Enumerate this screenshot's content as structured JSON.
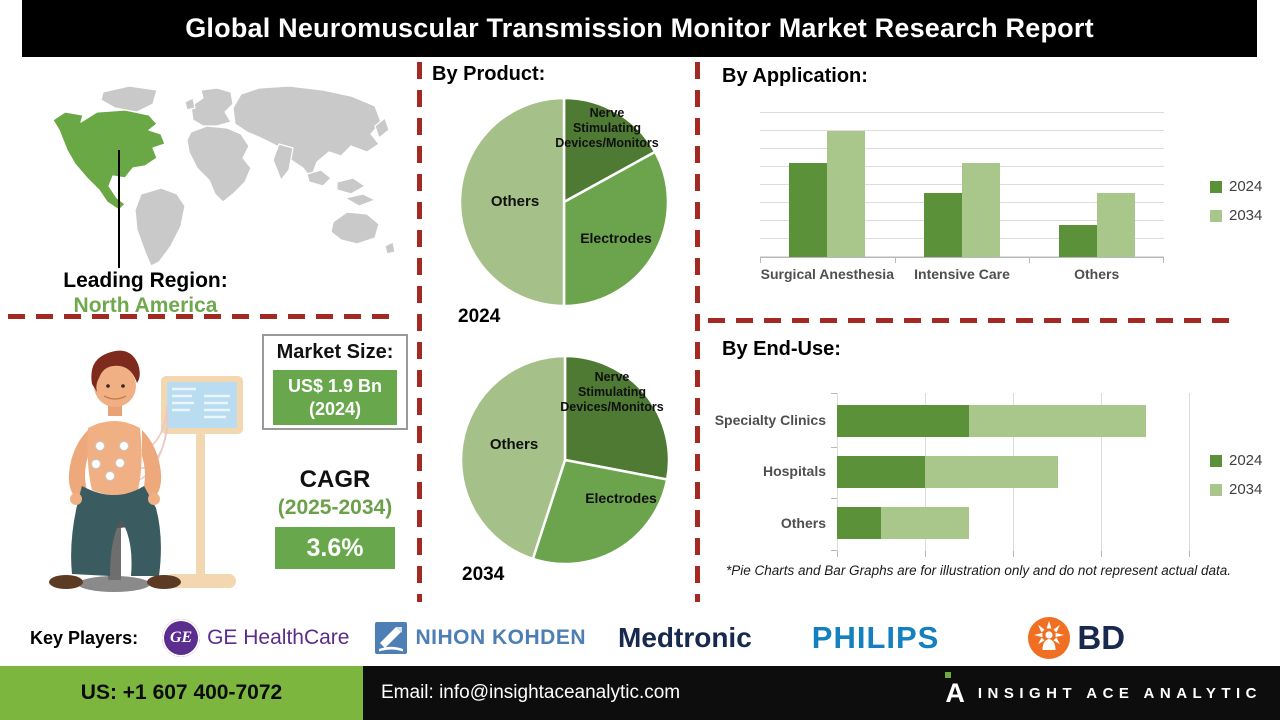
{
  "header": {
    "title": "Global Neuromuscular Transmission Monitor Market Research Report"
  },
  "map": {
    "leading_label": "Leading Region:",
    "leading_value": "North America"
  },
  "market": {
    "size_label": "Market Size:",
    "size_value": "US$ 1.9 Bn",
    "size_year": "(2024)",
    "cagr_label": "CAGR",
    "cagr_period": "(2025-2034)",
    "cagr_value": "3.6%"
  },
  "sections": {
    "product": "By Product:",
    "application": "By Application:",
    "enduse": "By End-Use:"
  },
  "disclaimer": "*Pie Charts and Bar Graphs are for illustration only and do not represent actual data.",
  "players": {
    "label": "Key Players:",
    "ge": "GE HealthCare",
    "nihon": "NIHON KOHDEN",
    "medtronic": "Medtronic",
    "philips": "PHILIPS",
    "bd": "BD"
  },
  "footer": {
    "phone": "US: +1 607 400-7072",
    "email": "Email: info@insightaceanalytic.com",
    "brand": "INSIGHT ACE ANALYTIC"
  },
  "icons": {
    "ge_monogram": "GE",
    "brand_a": "A"
  },
  "colors": {
    "pie_dark": "#4e7a33",
    "pie_mid": "#6ca44e",
    "pie_light": "#a5c189",
    "series_2024": "#5b9138",
    "series_2034": "#a9c78a",
    "divider_red": "#a32a22",
    "box_green": "#68a74c",
    "footer_green": "#7cb63e",
    "map_green": "#69a845",
    "map_gray": "#c9c9c9",
    "ge_purple": "#5b2d8e",
    "nihon_blue": "#4d7eb4",
    "medtronic_navy": "#17294d",
    "philips_blue": "#1580c0",
    "bd_orange": "#f06f22"
  },
  "chart_data": [
    {
      "id": "product_2024",
      "type": "pie",
      "title": "By Product: 2024",
      "year_label": "2024",
      "labels": [
        "Nerve Stimulating Devices/Monitors",
        "Electrodes",
        "Others"
      ],
      "values": [
        17,
        33,
        50
      ],
      "colors": [
        "#4e7a33",
        "#6ca44e",
        "#a5c189"
      ],
      "note": "illustrative only"
    },
    {
      "id": "product_2034",
      "type": "pie",
      "title": "By Product: 2034",
      "year_label": "2034",
      "labels": [
        "Nerve Stimulating Devices/Monitors",
        "Electrodes",
        "Others"
      ],
      "values": [
        28,
        27,
        45
      ],
      "colors": [
        "#4e7a33",
        "#6ca44e",
        "#a5c189"
      ],
      "note": "illustrative only"
    },
    {
      "id": "application",
      "type": "bar",
      "title": "By Application:",
      "categories": [
        "Surgical Anesthesia",
        "Intensive Care",
        "Others"
      ],
      "series": [
        {
          "name": "2024",
          "color": "#5b9138",
          "values": [
            65,
            44,
            22
          ]
        },
        {
          "name": "2034",
          "color": "#a9c78a",
          "values": [
            87,
            65,
            44
          ]
        }
      ],
      "ylim": [
        0,
        100
      ],
      "grid": true,
      "legend_position": "right",
      "note": "illustrative only"
    },
    {
      "id": "enduse",
      "type": "bar",
      "orientation": "horizontal",
      "stacked": true,
      "title": "By End-Use:",
      "categories": [
        "Specialty Clinics",
        "Hospitals",
        "Others"
      ],
      "series": [
        {
          "name": "2024",
          "color": "#5b9138",
          "values": [
            1.5,
            1.0,
            0.5
          ]
        },
        {
          "name": "2034",
          "color": "#a9c78a",
          "values": [
            2.0,
            1.5,
            1.0
          ]
        }
      ],
      "xlim": [
        0,
        4
      ],
      "grid": true,
      "legend_position": "right",
      "note": "illustrative only"
    }
  ]
}
